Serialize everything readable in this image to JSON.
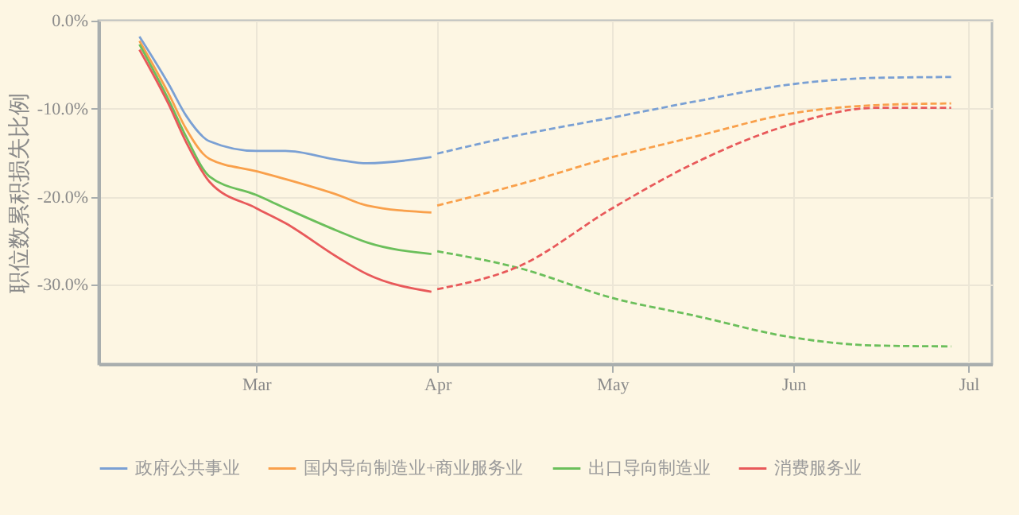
{
  "chart_data": {
    "type": "line",
    "ylabel": "职位数累积损失比例",
    "xlim": [
      "--02-02",
      "--07-05"
    ],
    "xticks": [
      {
        "value": "--03-01",
        "label": "Mar"
      },
      {
        "value": "--04-01",
        "label": "Apr"
      },
      {
        "value": "--05-01",
        "label": "May"
      },
      {
        "value": "--06-01",
        "label": "Jun"
      },
      {
        "value": "--07-01",
        "label": "Jul"
      }
    ],
    "ylim": [
      -39,
      0
    ],
    "yticks": [
      {
        "value": 0,
        "label": "0.0%"
      },
      {
        "value": -10,
        "label": "-10.0%"
      },
      {
        "value": -20,
        "label": "-20.0%"
      },
      {
        "value": -30,
        "label": "-30.0%"
      }
    ],
    "grid": true,
    "legend": "bottom",
    "series": [
      {
        "name": "政府公共事业",
        "color": "#7aa0d4",
        "line_style": "solid",
        "x": [
          "--02-09",
          "--02-14",
          "--02-17",
          "--02-21",
          "--03-01",
          "--03-06",
          "--03-15",
          "--03-20",
          "--03-31"
        ],
        "values": [
          -1.8,
          -7.2,
          -10.8,
          -13.7,
          -14.8,
          -14.8,
          -15.8,
          -16.2,
          -15.5
        ]
      },
      {
        "name": "国内导向制造业+商业服务业",
        "color": "#f9a04b",
        "line_style": "solid",
        "x": [
          "--02-09",
          "--02-14",
          "--02-17",
          "--02-21",
          "--03-01",
          "--03-06",
          "--03-15",
          "--03-20",
          "--03-31"
        ],
        "values": [
          -2.3,
          -8.3,
          -12.3,
          -15.7,
          -17.1,
          -18,
          -19.8,
          -21,
          -21.8
        ]
      },
      {
        "name": "出口导向制造业",
        "color": "#6bbf5b",
        "line_style": "solid",
        "x": [
          "--02-09",
          "--02-14",
          "--02-17",
          "--02-21",
          "--03-01",
          "--03-06",
          "--03-15",
          "--03-20",
          "--03-31"
        ],
        "values": [
          -2.7,
          -9,
          -13.2,
          -17.7,
          -19.8,
          -21.3,
          -23.9,
          -25.2,
          -26.5
        ]
      },
      {
        "name": "消费服务业",
        "color": "#e8595a",
        "line_style": "solid",
        "x": [
          "--02-09",
          "--02-14",
          "--02-17",
          "--02-21",
          "--03-01",
          "--03-06",
          "--03-15",
          "--03-20",
          "--03-31"
        ],
        "values": [
          -3.3,
          -9.5,
          -13.8,
          -18.3,
          -21.3,
          -23,
          -26.9,
          -28.8,
          -30.8
        ]
      },
      {
        "color": "#7aa0d4",
        "line_style": "dashed",
        "x": [
          "--04-01",
          "--04-15",
          "--05-01",
          "--05-15",
          "--06-01",
          "--06-15",
          "--06-28"
        ],
        "values": [
          -15.1,
          -13.0,
          -11.0,
          -9.2,
          -7.2,
          -6.5,
          -6.4
        ]
      },
      {
        "color": "#f9a04b",
        "line_style": "dashed",
        "x": [
          "--04-01",
          "--04-15",
          "--05-01",
          "--05-15",
          "--06-01",
          "--06-15",
          "--06-28"
        ],
        "values": [
          -21.0,
          -18.6,
          -15.5,
          -13.2,
          -10.5,
          -9.6,
          -9.4
        ]
      },
      {
        "color": "#6bbf5b",
        "line_style": "dashed",
        "x": [
          "--04-01",
          "--04-15",
          "--05-01",
          "--05-15",
          "--06-01",
          "--06-15",
          "--06-28"
        ],
        "values": [
          -26.2,
          -28.1,
          -31.5,
          -33.5,
          -36.0,
          -36.9,
          -37.0
        ]
      },
      {
        "color": "#e8595a",
        "line_style": "dashed",
        "x": [
          "--04-01",
          "--04-15",
          "--05-01",
          "--05-15",
          "--06-01",
          "--06-15",
          "--06-28"
        ],
        "values": [
          -30.5,
          -27.9,
          -21.3,
          -16.2,
          -11.7,
          -9.9,
          -9.9
        ]
      }
    ]
  }
}
